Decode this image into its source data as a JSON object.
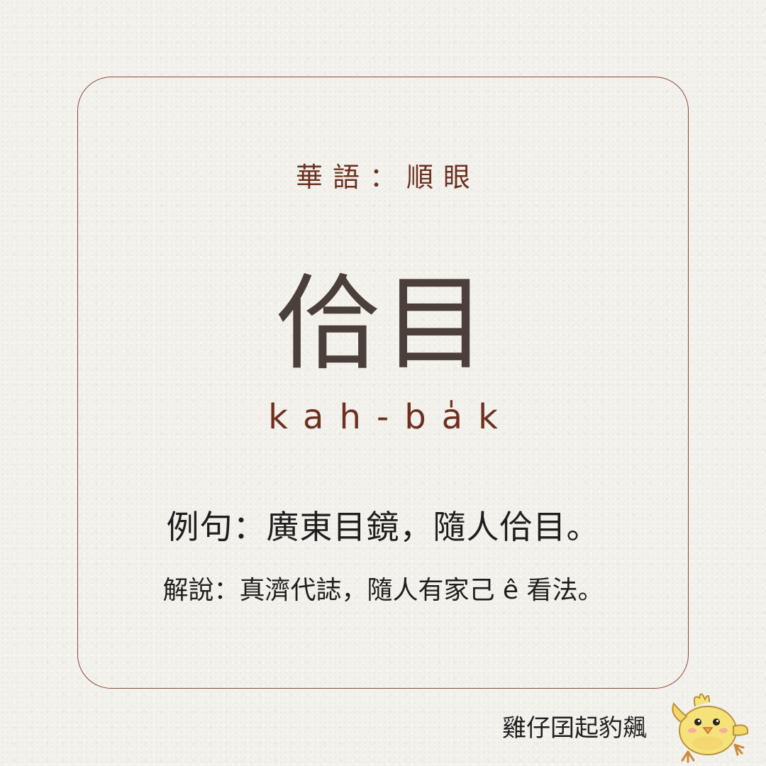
{
  "card": {
    "subtitle": "華語：順眼",
    "word": "佮目",
    "romanization": "kah-ba̍k",
    "example": "例句：廣東目鏡，隨人佮目。",
    "explanation": "解說：真濟代誌，隨人有家己 ê 看法。"
  },
  "footer": {
    "brand": "雞仔囝起豹飆",
    "mascot_icon": "yellow-chick-icon"
  },
  "colors": {
    "background": "#f3f1ec",
    "border": "#8a4a3a",
    "accent_brown": "#6e2f1f",
    "word_gray": "#4a3f3a",
    "text_dark": "#1e1e1e"
  }
}
